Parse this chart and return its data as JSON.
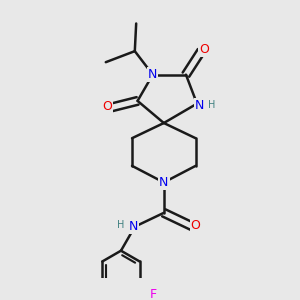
{
  "bg_color": "#e8e8e8",
  "bond_color": "#1a1a1a",
  "N_color": "#0000ee",
  "O_color": "#ee0000",
  "F_color": "#ee00ee",
  "H_color": "#408080",
  "line_width": 1.8,
  "font_size_atom": 9,
  "font_size_H": 7,
  "xlim": [
    0,
    10
  ],
  "ylim": [
    0,
    10
  ]
}
